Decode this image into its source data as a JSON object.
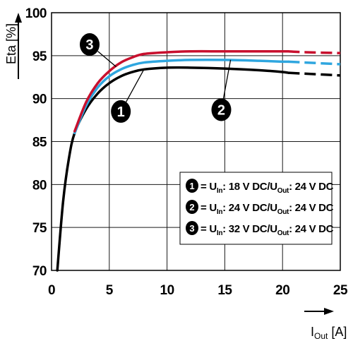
{
  "chart_data": {
    "type": "line",
    "title": "",
    "ylabel": "Eta [%]",
    "xlabel": {
      "main": "I",
      "sub": "Out",
      "unit": " [A]"
    },
    "xlim": [
      0,
      25
    ],
    "ylim": [
      70,
      100
    ],
    "x_ticks": [
      0,
      5,
      10,
      15,
      20,
      25
    ],
    "y_ticks": [
      70,
      75,
      80,
      85,
      90,
      95,
      100
    ],
    "x_tick_labels": [
      "0",
      "5",
      "10",
      "15",
      "20",
      "25"
    ],
    "y_tick_labels": [
      "70",
      "75",
      "80",
      "85",
      "90",
      "95",
      "100"
    ],
    "grid": true,
    "dashed_from_x": 20.5,
    "series": [
      {
        "id": "1",
        "color": "#000000",
        "legend": {
          "pre": "= U",
          "sub1": "In",
          "mid": ": 18 V DC/U",
          "sub2": "Out",
          "post": ": 24 V DC"
        },
        "x": [
          0.5,
          1,
          1.5,
          2,
          3,
          4,
          5,
          6,
          7,
          8,
          10,
          12,
          15,
          18,
          20,
          20.5,
          22,
          25
        ],
        "y": [
          70,
          78,
          83,
          86,
          88.8,
          90.6,
          91.8,
          92.6,
          93.1,
          93.4,
          93.6,
          93.6,
          93.5,
          93.3,
          93.1,
          93.0,
          92.9,
          92.7
        ]
      },
      {
        "id": "2",
        "color": "#2fa6df",
        "legend": {
          "pre": "= U",
          "sub1": "In",
          "mid": ": 24 V DC/U",
          "sub2": "Out",
          "post": ": 24 V DC"
        },
        "x": [
          2,
          3,
          4,
          5,
          6,
          7,
          8,
          10,
          12,
          15,
          18,
          20,
          20.5,
          22,
          25
        ],
        "y": [
          86,
          89.2,
          91.3,
          92.6,
          93.4,
          93.9,
          94.2,
          94.4,
          94.5,
          94.5,
          94.4,
          94.3,
          94.3,
          94.2,
          94.0
        ]
      },
      {
        "id": "3",
        "color": "#c8102e",
        "legend": {
          "pre": "= U",
          "sub1": "In",
          "mid": ": 32 V DC/U",
          "sub2": "Out",
          "post": ": 24 V DC"
        },
        "x": [
          2,
          3,
          4,
          5,
          6,
          7,
          8,
          10,
          12,
          15,
          18,
          20,
          20.5,
          22,
          25
        ],
        "y": [
          86.2,
          89.6,
          91.8,
          93.2,
          94.2,
          94.8,
          95.2,
          95.4,
          95.5,
          95.5,
          95.5,
          95.5,
          95.5,
          95.4,
          95.3
        ]
      }
    ],
    "callouts": [
      {
        "label": "3",
        "at": [
          3.3,
          96.3
        ],
        "to": [
          5.6,
          93.7
        ]
      },
      {
        "label": "1",
        "at": [
          6.0,
          88.5
        ],
        "to": [
          8.0,
          93.4
        ]
      },
      {
        "label": "2",
        "at": [
          14.7,
          88.7
        ],
        "to": [
          15.5,
          94.5
        ]
      }
    ],
    "legend_placement": "lower-right"
  }
}
